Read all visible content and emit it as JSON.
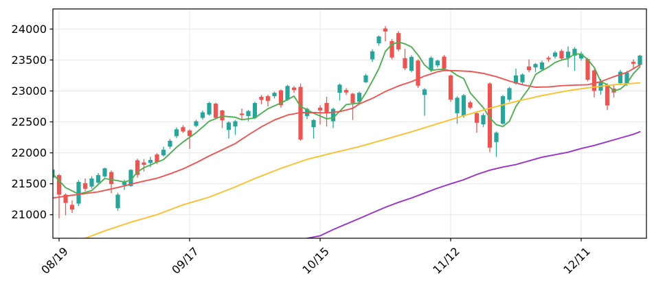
{
  "chart_data": {
    "type": "candlestick",
    "title": "",
    "xlabel": "",
    "ylabel": "",
    "grid": true,
    "legend": "none",
    "ylim": [
      20620,
      24325
    ],
    "y_ticks": [
      21000,
      21500,
      22000,
      22500,
      23000,
      23500,
      24000
    ],
    "y_tick_labels": [
      "21000",
      "21500",
      "22000",
      "22500",
      "23000",
      "23500",
      "24000"
    ],
    "x_ticks": [
      {
        "index": 1,
        "label": "08/19"
      },
      {
        "index": 21,
        "label": "09/17"
      },
      {
        "index": 41,
        "label": "10/15"
      },
      {
        "index": 61,
        "label": "11/12"
      },
      {
        "index": 81,
        "label": "12/11"
      }
    ],
    "bars_total": 91,
    "ohlc_columns": [
      "open",
      "high",
      "low",
      "close"
    ],
    "ohlc": [
      [
        21600,
        21745,
        21580,
        21730
      ],
      [
        21640,
        21660,
        20940,
        21325
      ],
      [
        21325,
        21345,
        20990,
        21190
      ],
      [
        21160,
        21230,
        21030,
        21085
      ],
      [
        21180,
        21560,
        21140,
        21530
      ],
      [
        21510,
        21585,
        21380,
        21420
      ],
      [
        21455,
        21620,
        21420,
        21585
      ],
      [
        21520,
        21675,
        21505,
        21640
      ],
      [
        21620,
        21760,
        21600,
        21750
      ],
      [
        21690,
        21715,
        21350,
        21495
      ],
      [
        21105,
        21355,
        21065,
        21325
      ],
      [
        21480,
        21565,
        21400,
        21535
      ],
      [
        21465,
        21735,
        21450,
        21725
      ],
      [
        21880,
        21905,
        21600,
        21645
      ],
      [
        21845,
        21900,
        21700,
        21805
      ],
      [
        21840,
        21935,
        21770,
        21885
      ],
      [
        21975,
        21995,
        21820,
        21850
      ],
      [
        21960,
        22100,
        21940,
        22050
      ],
      [
        22100,
        22225,
        22065,
        22195
      ],
      [
        22270,
        22410,
        22240,
        22380
      ],
      [
        22415,
        22445,
        22325,
        22345
      ],
      [
        22360,
        22380,
        22065,
        22270
      ],
      [
        22435,
        22535,
        22415,
        22510
      ],
      [
        22565,
        22685,
        22535,
        22655
      ],
      [
        22620,
        22825,
        22600,
        22805
      ],
      [
        22795,
        22810,
        22545,
        22565
      ],
      [
        22685,
        22695,
        22400,
        22525
      ],
      [
        22370,
        22510,
        22230,
        22490
      ],
      [
        22425,
        22530,
        22290,
        22510
      ],
      [
        22635,
        22715,
        22545,
        22610
      ],
      [
        22595,
        22695,
        22510,
        22675
      ],
      [
        22565,
        22825,
        22545,
        22805
      ],
      [
        22905,
        22935,
        22785,
        22855
      ],
      [
        22915,
        22940,
        22750,
        22840
      ],
      [
        22915,
        22990,
        22880,
        22970
      ],
      [
        23010,
        23025,
        22730,
        22770
      ],
      [
        22860,
        23100,
        22840,
        23080
      ],
      [
        23055,
        23080,
        22970,
        23015
      ],
      [
        23065,
        23120,
        22195,
        22215
      ],
      [
        22595,
        22730,
        22545,
        22710
      ],
      [
        22415,
        22545,
        22230,
        22530
      ],
      [
        22730,
        22770,
        22455,
        22685
      ],
      [
        22805,
        22905,
        22425,
        22655
      ],
      [
        22510,
        22730,
        22400,
        22710
      ],
      [
        22970,
        23120,
        22845,
        23100
      ],
      [
        23015,
        23045,
        22935,
        22975
      ],
      [
        22955,
        22970,
        22530,
        22805
      ],
      [
        22825,
        22990,
        22805,
        22970
      ],
      [
        23140,
        23275,
        23130,
        23250
      ],
      [
        23510,
        23675,
        23470,
        23640
      ],
      [
        23770,
        23895,
        23730,
        23880
      ],
      [
        24010,
        24050,
        23800,
        23960
      ],
      [
        23805,
        23835,
        23510,
        23540
      ],
      [
        23935,
        23965,
        23640,
        23670
      ],
      [
        23530,
        23680,
        23337,
        23365
      ],
      [
        23325,
        23575,
        23300,
        23550
      ],
      [
        23490,
        23510,
        23048,
        23085
      ],
      [
        22935,
        23045,
        22600,
        23025
      ],
      [
        23335,
        23560,
        23305,
        23535
      ],
      [
        23415,
        23505,
        23380,
        23490
      ],
      [
        23555,
        23580,
        23340,
        23360
      ],
      [
        23250,
        23265,
        22825,
        22860
      ],
      [
        22640,
        22915,
        22470,
        22890
      ],
      [
        22600,
        22950,
        22565,
        22930
      ],
      [
        22815,
        22840,
        22710,
        22730
      ],
      [
        22640,
        22655,
        22325,
        22485
      ],
      [
        22460,
        22640,
        22415,
        22610
      ],
      [
        23120,
        23140,
        22010,
        22085
      ],
      [
        22175,
        22345,
        21935,
        22325
      ],
      [
        22470,
        22935,
        22455,
        22915
      ],
      [
        22860,
        23065,
        22825,
        23045
      ],
      [
        23120,
        23360,
        23100,
        23250
      ],
      [
        23140,
        23285,
        23100,
        23265
      ],
      [
        23395,
        23510,
        23305,
        23335
      ],
      [
        23380,
        23450,
        23305,
        23435
      ],
      [
        23350,
        23490,
        23320,
        23460
      ],
      [
        23535,
        23560,
        23470,
        23510
      ],
      [
        23555,
        23645,
        23525,
        23620
      ],
      [
        23645,
        23675,
        23490,
        23525
      ],
      [
        23535,
        23720,
        23385,
        23635
      ],
      [
        23570,
        23710,
        23325,
        23680
      ],
      [
        23525,
        23635,
        23490,
        23600
      ],
      [
        23515,
        23530,
        23155,
        23180
      ],
      [
        23330,
        23350,
        22895,
        23000
      ],
      [
        23005,
        23195,
        22940,
        23150
      ],
      [
        23100,
        23125,
        22690,
        22765
      ],
      [
        23040,
        23100,
        22895,
        22975
      ],
      [
        23125,
        23340,
        23095,
        23310
      ],
      [
        23110,
        23325,
        23080,
        23295
      ],
      [
        23470,
        23510,
        23370,
        23440
      ],
      [
        23420,
        23585,
        23400,
        23570
      ]
    ],
    "overlays": [
      {
        "name": "ma-line-green",
        "color": "#4caf50",
        "points": [
          [
            0,
            21665
          ],
          [
            2,
            21437
          ],
          [
            4,
            21333
          ],
          [
            6,
            21390
          ],
          [
            8,
            21585
          ],
          [
            10,
            21550
          ],
          [
            11,
            21530
          ],
          [
            12,
            21560
          ],
          [
            13,
            21690
          ],
          [
            14,
            21760
          ],
          [
            15,
            21805
          ],
          [
            16,
            21850
          ],
          [
            17,
            21890
          ],
          [
            18,
            21990
          ],
          [
            19,
            22090
          ],
          [
            20,
            22175
          ],
          [
            22,
            22325
          ],
          [
            24,
            22510
          ],
          [
            26,
            22595
          ],
          [
            28,
            22575
          ],
          [
            29,
            22535
          ],
          [
            31,
            22565
          ],
          [
            33,
            22712
          ],
          [
            35,
            22805
          ],
          [
            37,
            22916
          ],
          [
            38,
            22750
          ],
          [
            40,
            22640
          ],
          [
            42,
            22550
          ],
          [
            43,
            22565
          ],
          [
            45,
            22780
          ],
          [
            47,
            22805
          ],
          [
            48,
            22970
          ],
          [
            49,
            23160
          ],
          [
            50,
            23360
          ],
          [
            51,
            23640
          ],
          [
            52,
            23750
          ],
          [
            53,
            23790
          ],
          [
            54,
            23760
          ],
          [
            55,
            23710
          ],
          [
            56,
            23580
          ],
          [
            57,
            23420
          ],
          [
            58,
            23330
          ],
          [
            59,
            23345
          ],
          [
            60,
            23350
          ],
          [
            61,
            23323
          ],
          [
            62,
            23250
          ],
          [
            63,
            23200
          ],
          [
            64,
            22970
          ],
          [
            65,
            22850
          ],
          [
            66,
            22730
          ],
          [
            67,
            22565
          ],
          [
            68,
            22455
          ],
          [
            69,
            22425
          ],
          [
            70,
            22510
          ],
          [
            71,
            22750
          ],
          [
            72,
            22900
          ],
          [
            73,
            23045
          ],
          [
            74,
            23265
          ],
          [
            75,
            23330
          ],
          [
            76,
            23385
          ],
          [
            77,
            23460
          ],
          [
            78,
            23500
          ],
          [
            79,
            23525
          ],
          [
            80,
            23600
          ],
          [
            81,
            23595
          ],
          [
            82,
            23510
          ],
          [
            83,
            23380
          ],
          [
            84,
            23150
          ],
          [
            85,
            23100
          ],
          [
            86,
            23000
          ],
          [
            87,
            23030
          ],
          [
            88,
            23120
          ],
          [
            89,
            23280
          ],
          [
            90,
            23390
          ]
        ]
      },
      {
        "name": "ma-line-red",
        "color": "#ef5350",
        "points": [
          [
            0,
            21270
          ],
          [
            4,
            21330
          ],
          [
            7,
            21370
          ],
          [
            10,
            21440
          ],
          [
            13,
            21520
          ],
          [
            16,
            21590
          ],
          [
            18,
            21660
          ],
          [
            20,
            21740
          ],
          [
            22,
            21840
          ],
          [
            24,
            21950
          ],
          [
            26,
            22050
          ],
          [
            28,
            22150
          ],
          [
            30,
            22290
          ],
          [
            32,
            22420
          ],
          [
            34,
            22530
          ],
          [
            36,
            22610
          ],
          [
            38,
            22650
          ],
          [
            40,
            22650
          ],
          [
            42,
            22645
          ],
          [
            44,
            22665
          ],
          [
            46,
            22720
          ],
          [
            47,
            22790
          ],
          [
            49,
            22880
          ],
          [
            51,
            22990
          ],
          [
            53,
            23080
          ],
          [
            55,
            23150
          ],
          [
            57,
            23240
          ],
          [
            59,
            23310
          ],
          [
            60,
            23330
          ],
          [
            62,
            23325
          ],
          [
            64,
            23315
          ],
          [
            66,
            23285
          ],
          [
            68,
            23230
          ],
          [
            70,
            23160
          ],
          [
            72,
            23100
          ],
          [
            74,
            23060
          ],
          [
            76,
            23065
          ],
          [
            78,
            23085
          ],
          [
            80,
            23095
          ],
          [
            82,
            23100
          ],
          [
            84,
            23150
          ],
          [
            86,
            23230
          ],
          [
            88,
            23300
          ],
          [
            90,
            23420
          ]
        ]
      },
      {
        "name": "ma-line-yellow",
        "color": "#fdbf2d",
        "points": [
          [
            5,
            20620
          ],
          [
            8,
            20740
          ],
          [
            12,
            20880
          ],
          [
            16,
            21000
          ],
          [
            20,
            21160
          ],
          [
            24,
            21285
          ],
          [
            28,
            21450
          ],
          [
            31,
            21585
          ],
          [
            35,
            21750
          ],
          [
            39,
            21895
          ],
          [
            43,
            22000
          ],
          [
            47,
            22100
          ],
          [
            51,
            22220
          ],
          [
            55,
            22340
          ],
          [
            59,
            22470
          ],
          [
            63,
            22600
          ],
          [
            67,
            22720
          ],
          [
            71,
            22830
          ],
          [
            75,
            22925
          ],
          [
            79,
            23005
          ],
          [
            82,
            23050
          ],
          [
            84,
            23075
          ],
          [
            86,
            23100
          ],
          [
            88,
            23115
          ],
          [
            90,
            23130
          ]
        ]
      },
      {
        "name": "ma-line-purple",
        "color": "#9932cc",
        "points": [
          [
            39,
            20620
          ],
          [
            41,
            20660
          ],
          [
            43,
            20760
          ],
          [
            45,
            20850
          ],
          [
            47,
            20940
          ],
          [
            49,
            21030
          ],
          [
            51,
            21120
          ],
          [
            53,
            21200
          ],
          [
            55,
            21270
          ],
          [
            57,
            21350
          ],
          [
            59,
            21430
          ],
          [
            61,
            21500
          ],
          [
            63,
            21565
          ],
          [
            65,
            21650
          ],
          [
            67,
            21720
          ],
          [
            69,
            21770
          ],
          [
            71,
            21810
          ],
          [
            73,
            21870
          ],
          [
            75,
            21930
          ],
          [
            77,
            21970
          ],
          [
            79,
            22010
          ],
          [
            81,
            22070
          ],
          [
            83,
            22120
          ],
          [
            85,
            22180
          ],
          [
            87,
            22240
          ],
          [
            89,
            22300
          ],
          [
            90,
            22340
          ]
        ]
      }
    ],
    "colors": {
      "up_candle": "#26a69a",
      "down_candle": "#ef5350",
      "grid": "#e7e7e7",
      "spine": "#000000",
      "tick_label": "#000000",
      "background": "#ffffff"
    }
  }
}
